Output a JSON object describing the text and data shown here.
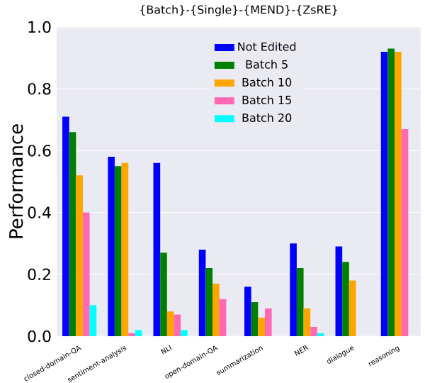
{
  "chart_data": {
    "type": "bar",
    "title": "{Batch}-{Single}-{MEND}-{ZsRE}",
    "ylabel": "Performance",
    "categories": [
      "closed-domain-QA",
      "sentiment-analysis",
      "NLI",
      "open-domain-QA",
      "summarization",
      "NER",
      "dialogue",
      "reasoning"
    ],
    "series": [
      {
        "name": "Not Edited",
        "color": "#0000ff",
        "values": [
          0.71,
          0.58,
          0.56,
          0.28,
          0.16,
          0.3,
          0.29,
          0.92
        ]
      },
      {
        "name": "Batch 5",
        "color": "#008000",
        "values": [
          0.66,
          0.55,
          0.27,
          0.22,
          0.11,
          0.22,
          0.24,
          0.93
        ]
      },
      {
        "name": "Batch 10",
        "color": "#ffa500",
        "values": [
          0.52,
          0.56,
          0.08,
          0.17,
          0.06,
          0.09,
          0.18,
          0.92
        ]
      },
      {
        "name": "Batch 15",
        "color": "#ff69b4",
        "values": [
          0.4,
          0.01,
          0.07,
          0.12,
          0.09,
          0.03,
          0.0,
          0.67
        ]
      },
      {
        "name": "Batch 20",
        "color": "#00ffff",
        "values": [
          0.1,
          0.02,
          0.02,
          0.0,
          0.0,
          0.01,
          0.0,
          0.0
        ]
      }
    ],
    "ylim": [
      0,
      1.0
    ],
    "yticks": [
      {
        "value": 0,
        "label": "0.0"
      },
      {
        "value": 0.2,
        "label": "0.2"
      },
      {
        "value": 0.4,
        "label": "0.4"
      },
      {
        "value": 0.6,
        "label": "0.6"
      },
      {
        "value": 0.8,
        "label": "0.8"
      },
      {
        "value": 1.0,
        "label": "1.0"
      }
    ],
    "grid": "y",
    "legend": "top"
  }
}
